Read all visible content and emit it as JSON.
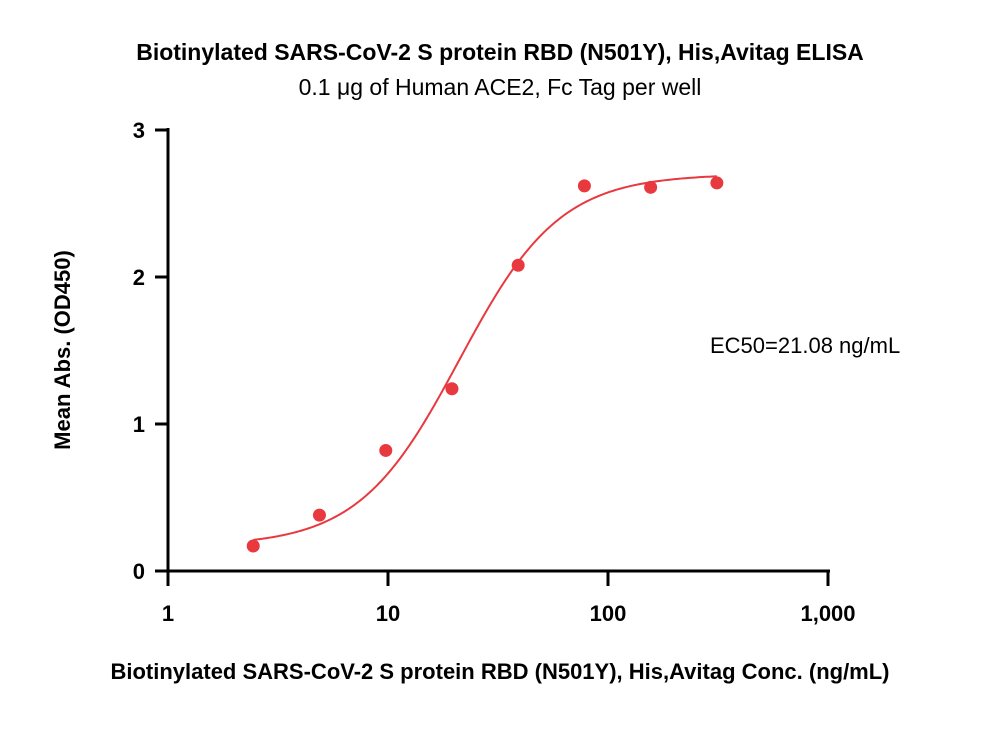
{
  "chart_data": {
    "type": "scatter",
    "title": "Biotinylated SARS-CoV-2 S protein RBD (N501Y), His,Avitag ELISA",
    "subtitle": "0.1 μg of Human ACE2, Fc Tag per well",
    "xlabel": "Biotinylated SARS-CoV-2 S protein RBD (N501Y), His,Avitag Conc. (ng/mL)",
    "ylabel": "Mean Abs. (OD450)",
    "x_scale": "log",
    "xlim": [
      1,
      1000
    ],
    "ylim": [
      0,
      3
    ],
    "x_ticks": [
      1,
      10,
      100,
      1000
    ],
    "x_tick_labels": [
      "1",
      "10",
      "100",
      "1,000"
    ],
    "y_ticks": [
      0,
      1,
      2,
      3
    ],
    "y_tick_labels": [
      "0",
      "1",
      "2",
      "3"
    ],
    "grid": false,
    "annotation": "EC50=21.08 ng/mL",
    "points_color": "#e8393f",
    "curve_color": "#e8393f",
    "x": [
      2.44,
      4.88,
      9.77,
      19.53,
      39.06,
      78.13,
      156.25,
      312.5
    ],
    "y": [
      0.17,
      0.38,
      0.82,
      1.24,
      2.08,
      2.62,
      2.61,
      2.64
    ],
    "fit_curve": {
      "model": "4PL",
      "bottom": 0.17,
      "top": 2.7,
      "ec50": 21.08,
      "hill": 1.9,
      "x_range": [
        2.44,
        312.5
      ]
    }
  }
}
